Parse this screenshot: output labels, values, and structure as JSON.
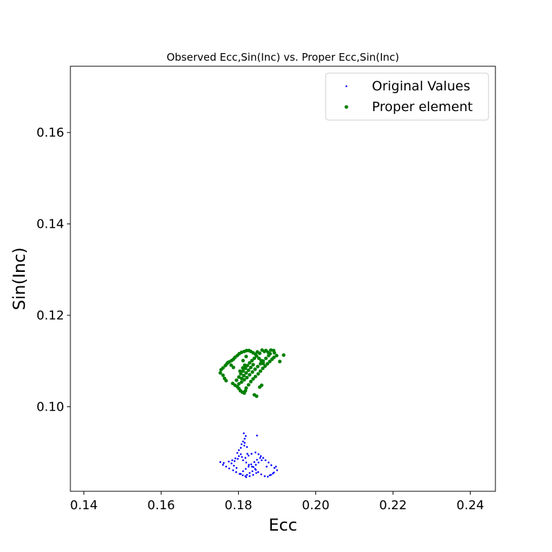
{
  "chart_data": {
    "type": "scatter",
    "title": "Observed Ecc,Sin(Inc) vs. Proper Ecc,Sin(Inc)",
    "xlabel": "Ecc",
    "ylabel": "Sin(Inc)",
    "xlim": [
      0.1365,
      0.2465
    ],
    "ylim": [
      0.0815,
      0.1745
    ],
    "xticks": [
      0.14,
      0.16,
      0.18,
      0.2,
      0.22,
      0.24
    ],
    "xtick_labels": [
      "0.14",
      "0.16",
      "0.18",
      "0.20",
      "0.22",
      "0.24"
    ],
    "yticks": [
      0.1,
      0.12,
      0.14,
      0.16
    ],
    "ytick_labels": [
      "0.10",
      "0.12",
      "0.14",
      "0.16"
    ],
    "grid": false,
    "legend": "top-right",
    "series": [
      {
        "name": "Original Values",
        "color": "#0000ff",
        "marker": "small-dot",
        "points": [
          [
            0.1814,
            0.0942
          ],
          [
            0.1819,
            0.0936
          ],
          [
            0.1816,
            0.093
          ],
          [
            0.1812,
            0.0924
          ],
          [
            0.1808,
            0.0918
          ],
          [
            0.1815,
            0.0915
          ],
          [
            0.1806,
            0.091
          ],
          [
            0.1801,
            0.0905
          ],
          [
            0.1797,
            0.0899
          ],
          [
            0.1806,
            0.0896
          ],
          [
            0.1801,
            0.0892
          ],
          [
            0.1792,
            0.0887
          ],
          [
            0.1784,
            0.0883
          ],
          [
            0.1775,
            0.088
          ],
          [
            0.1762,
            0.0877
          ],
          [
            0.1753,
            0.0879
          ],
          [
            0.176,
            0.0873
          ],
          [
            0.1768,
            0.0869
          ],
          [
            0.1776,
            0.0865
          ],
          [
            0.1786,
            0.0861
          ],
          [
            0.1794,
            0.0857
          ],
          [
            0.1803,
            0.0853
          ],
          [
            0.1811,
            0.085
          ],
          [
            0.1818,
            0.0848
          ],
          [
            0.1822,
            0.0851
          ],
          [
            0.1829,
            0.0855
          ],
          [
            0.1836,
            0.0859
          ],
          [
            0.1843,
            0.0864
          ],
          [
            0.1835,
            0.0869
          ],
          [
            0.1827,
            0.0873
          ],
          [
            0.182,
            0.0878
          ],
          [
            0.1812,
            0.0883
          ],
          [
            0.1818,
            0.0888
          ],
          [
            0.1826,
            0.0893
          ],
          [
            0.1834,
            0.0897
          ],
          [
            0.1844,
            0.09
          ],
          [
            0.1852,
            0.0896
          ],
          [
            0.1858,
            0.0892
          ],
          [
            0.1864,
            0.0888
          ],
          [
            0.187,
            0.0883
          ],
          [
            0.1878,
            0.0878
          ],
          [
            0.1885,
            0.0872
          ],
          [
            0.1893,
            0.0866
          ],
          [
            0.19,
            0.0861
          ],
          [
            0.1892,
            0.0856
          ],
          [
            0.1884,
            0.0851
          ],
          [
            0.1876,
            0.0847
          ],
          [
            0.1868,
            0.0848
          ],
          [
            0.1859,
            0.0852
          ],
          [
            0.1851,
            0.0857
          ],
          [
            0.1845,
            0.0862
          ],
          [
            0.1839,
            0.0868
          ],
          [
            0.1845,
            0.0873
          ],
          [
            0.1852,
            0.0878
          ],
          [
            0.186,
            0.0883
          ],
          [
            0.1856,
            0.0888
          ],
          [
            0.1848,
            0.0884
          ],
          [
            0.1841,
            0.0879
          ],
          [
            0.1833,
            0.0874
          ],
          [
            0.1826,
            0.0869
          ],
          [
            0.1819,
            0.0864
          ],
          [
            0.1812,
            0.0859
          ],
          [
            0.1806,
            0.0853
          ],
          [
            0.182,
            0.0846
          ],
          [
            0.1829,
            0.0848
          ],
          [
            0.1838,
            0.0851
          ],
          [
            0.1846,
            0.0855
          ],
          [
            0.1795,
            0.0866
          ],
          [
            0.1788,
            0.0871
          ],
          [
            0.1782,
            0.0876
          ],
          [
            0.179,
            0.0881
          ],
          [
            0.1798,
            0.0886
          ],
          [
            0.1809,
            0.089
          ],
          [
            0.1823,
            0.0897
          ],
          [
            0.1848,
            0.0937
          ],
          [
            0.1816,
            0.0921
          ],
          [
            0.1822,
            0.0912
          ],
          [
            0.1881,
            0.085
          ],
          [
            0.1889,
            0.0854
          ],
          [
            0.1873,
            0.0869
          ],
          [
            0.1897,
            0.0869
          ]
        ]
      },
      {
        "name": "Proper element",
        "color": "#008000",
        "marker": "dot",
        "points": [
          [
            0.1917,
            0.1113
          ],
          [
            0.1907,
            0.1099
          ],
          [
            0.1899,
            0.1112
          ],
          [
            0.1893,
            0.1118
          ],
          [
            0.1891,
            0.1123
          ],
          [
            0.1884,
            0.1124
          ],
          [
            0.1882,
            0.1116
          ],
          [
            0.1877,
            0.1119
          ],
          [
            0.1871,
            0.1123
          ],
          [
            0.1867,
            0.1121
          ],
          [
            0.1861,
            0.1124
          ],
          [
            0.1855,
            0.1117
          ],
          [
            0.1849,
            0.112
          ],
          [
            0.1844,
            0.1115
          ],
          [
            0.1838,
            0.1118
          ],
          [
            0.1832,
            0.1121
          ],
          [
            0.1827,
            0.1123
          ],
          [
            0.1821,
            0.1123
          ],
          [
            0.1815,
            0.1121
          ],
          [
            0.1808,
            0.1119
          ],
          [
            0.1802,
            0.1116
          ],
          [
            0.1797,
            0.1112
          ],
          [
            0.1791,
            0.1108
          ],
          [
            0.1787,
            0.1104
          ],
          [
            0.1782,
            0.1101
          ],
          [
            0.1776,
            0.1098
          ],
          [
            0.177,
            0.1094
          ],
          [
            0.1766,
            0.109
          ],
          [
            0.176,
            0.1085
          ],
          [
            0.1755,
            0.1081
          ],
          [
            0.1753,
            0.1074
          ],
          [
            0.176,
            0.1069
          ],
          [
            0.1764,
            0.1062
          ],
          [
            0.1768,
            0.1057
          ],
          [
            0.1785,
            0.1051
          ],
          [
            0.1791,
            0.1047
          ],
          [
            0.1797,
            0.1044
          ],
          [
            0.1801,
            0.104
          ],
          [
            0.1805,
            0.1035
          ],
          [
            0.181,
            0.1032
          ],
          [
            0.1815,
            0.103
          ],
          [
            0.1818,
            0.1035
          ],
          [
            0.182,
            0.1041
          ],
          [
            0.1826,
            0.1048
          ],
          [
            0.1832,
            0.1055
          ],
          [
            0.1838,
            0.1061
          ],
          [
            0.1844,
            0.1066
          ],
          [
            0.1851,
            0.1072
          ],
          [
            0.1857,
            0.1078
          ],
          [
            0.1863,
            0.1084
          ],
          [
            0.1869,
            0.1089
          ],
          [
            0.1875,
            0.1094
          ],
          [
            0.1881,
            0.1099
          ],
          [
            0.1887,
            0.1104
          ],
          [
            0.1892,
            0.1108
          ],
          [
            0.1878,
            0.1112
          ],
          [
            0.1871,
            0.1106
          ],
          [
            0.1864,
            0.11
          ],
          [
            0.1857,
            0.1094
          ],
          [
            0.185,
            0.1088
          ],
          [
            0.1843,
            0.1082
          ],
          [
            0.1836,
            0.1076
          ],
          [
            0.1829,
            0.107
          ],
          [
            0.1822,
            0.1064
          ],
          [
            0.1815,
            0.1059
          ],
          [
            0.1808,
            0.1054
          ],
          [
            0.1801,
            0.105
          ],
          [
            0.1795,
            0.1058
          ],
          [
            0.1801,
            0.1065
          ],
          [
            0.1806,
            0.1072
          ],
          [
            0.1812,
            0.1078
          ],
          [
            0.1818,
            0.1084
          ],
          [
            0.1823,
            0.109
          ],
          [
            0.1829,
            0.1096
          ],
          [
            0.1835,
            0.1101
          ],
          [
            0.1841,
            0.1106
          ],
          [
            0.1847,
            0.1111
          ],
          [
            0.1853,
            0.1106
          ],
          [
            0.1859,
            0.1101
          ],
          [
            0.1864,
            0.1095
          ],
          [
            0.1808,
            0.1062
          ],
          [
            0.1814,
            0.1068
          ],
          [
            0.182,
            0.1074
          ],
          [
            0.1826,
            0.108
          ],
          [
            0.1832,
            0.1086
          ],
          [
            0.1838,
            0.1092
          ],
          [
            0.1787,
            0.1086
          ],
          [
            0.1781,
            0.1091
          ],
          [
            0.1773,
            0.1097
          ],
          [
            0.1841,
            0.1026
          ],
          [
            0.1847,
            0.1023
          ],
          [
            0.1855,
            0.1043
          ],
          [
            0.186,
            0.1047
          ],
          [
            0.1804,
            0.1078
          ],
          [
            0.1811,
            0.1085
          ],
          [
            0.1816,
            0.1091
          ],
          [
            0.1812,
            0.1101
          ],
          [
            0.182,
            0.111
          ]
        ]
      }
    ]
  }
}
